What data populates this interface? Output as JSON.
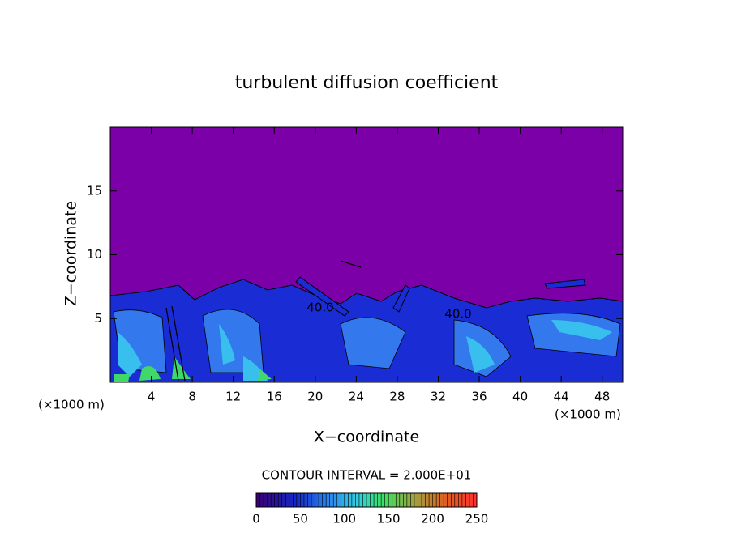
{
  "chart_data": {
    "type": "contour",
    "title": "turbulent diffusion coefficient",
    "xlabel": "X−coordinate",
    "ylabel": "Z−coordinate",
    "x_unit": "(×1000 m)",
    "xlim": [
      0,
      50
    ],
    "xticks": [
      4,
      8,
      12,
      16,
      20,
      24,
      28,
      32,
      36,
      40,
      44,
      48
    ],
    "ylim": [
      0,
      20
    ],
    "yticks": [
      5,
      10,
      15
    ],
    "contour_interval_label": "CONTOUR INTERVAL = 2.000E+01",
    "contour_labels": [
      "40.0",
      "40.0"
    ],
    "colorbar": {
      "lim": [
        0,
        250
      ],
      "ticks": [
        0,
        50,
        100,
        150,
        200,
        250
      ]
    }
  }
}
